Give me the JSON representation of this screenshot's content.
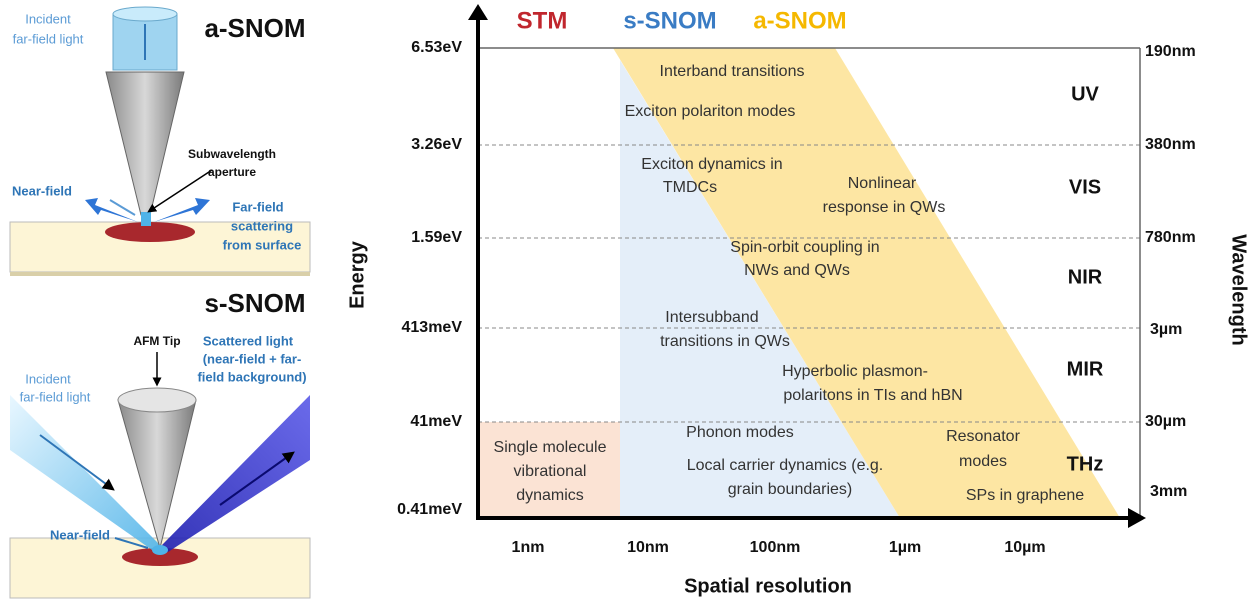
{
  "panels": [
    {
      "title": "a-SNOM",
      "labels": [
        {
          "lines": [
            "Incident",
            "far-field light"
          ]
        },
        {
          "lines": [
            "Subwavelength",
            "aperture"
          ]
        },
        {
          "lines": [
            "Near-field"
          ]
        },
        {
          "lines": [
            "Far-field",
            "scattering",
            "from surface"
          ]
        }
      ]
    },
    {
      "title": "s-SNOM",
      "labels": [
        {
          "lines": [
            "Incident",
            "far-field light"
          ]
        },
        {
          "lines": [
            "AFM Tip"
          ]
        },
        {
          "lines": [
            "Scattered light",
            "(near-field + far-",
            "field background)"
          ]
        },
        {
          "lines": [
            "Near-field"
          ]
        }
      ]
    }
  ],
  "chart": {
    "legend": [
      "STM",
      "s-SNOM",
      "a-SNOM"
    ],
    "energy_ticks": [
      "6.53eV",
      "3.26eV",
      "1.59eV",
      "413meV",
      "41meV",
      "0.41meV"
    ],
    "wavelength_ticks": [
      "190nm",
      "380nm",
      "780nm",
      "3µm",
      "30µm",
      "3mm"
    ],
    "bands": [
      "UV",
      "VIS",
      "NIR",
      "MIR",
      "THz"
    ],
    "resolution_ticks": [
      "1nm",
      "10nm",
      "100nm",
      "1µm",
      "10µm"
    ],
    "y_axis_title": "Energy",
    "y2_axis_title": "Wavelength",
    "x_axis_title": "Spatial resolution",
    "regions": [
      {
        "lines": [
          "Interband transitions"
        ]
      },
      {
        "lines": [
          "Exciton polariton modes"
        ]
      },
      {
        "lines": [
          "Exciton dynamics in",
          "TMDCs"
        ]
      },
      {
        "lines": [
          "Nonlinear",
          "response in QWs"
        ]
      },
      {
        "lines": [
          "Spin-orbit coupling in",
          "NWs and QWs"
        ]
      },
      {
        "lines": [
          "Intersubband",
          "transitions in QWs"
        ]
      },
      {
        "lines": [
          "Hyperbolic plasmon-",
          "polaritons in TIs and hBN"
        ]
      },
      {
        "lines": [
          "Phonon modes"
        ]
      },
      {
        "lines": [
          "Local carrier dynamics (e.g.",
          "grain boundaries)"
        ]
      },
      {
        "lines": [
          "Single molecule",
          "vibrational",
          "dynamics"
        ]
      },
      {
        "lines": [
          "Resonator",
          "modes"
        ]
      },
      {
        "lines": [
          "SPs in graphene"
        ]
      }
    ]
  }
}
